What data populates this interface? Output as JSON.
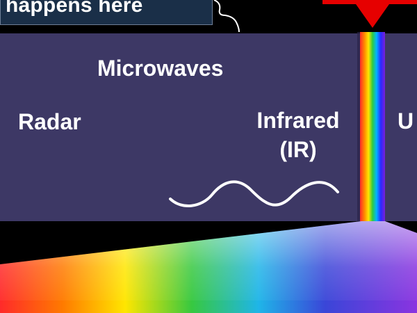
{
  "callout": {
    "text": "happens here"
  },
  "bands": {
    "microwaves": "Microwaves",
    "radar": "Radar",
    "infrared_line1": "Infrared",
    "infrared_line2": "(IR)",
    "partial_right": "U"
  },
  "colors": {
    "band_background": "#3d3865",
    "callout_background": "#1a2f48",
    "arrow": "#e60000",
    "text": "#ffffff"
  },
  "icons": {
    "wave": "sine-wave-icon",
    "arrow": "down-arrow-icon",
    "brace": "brace-icon"
  }
}
